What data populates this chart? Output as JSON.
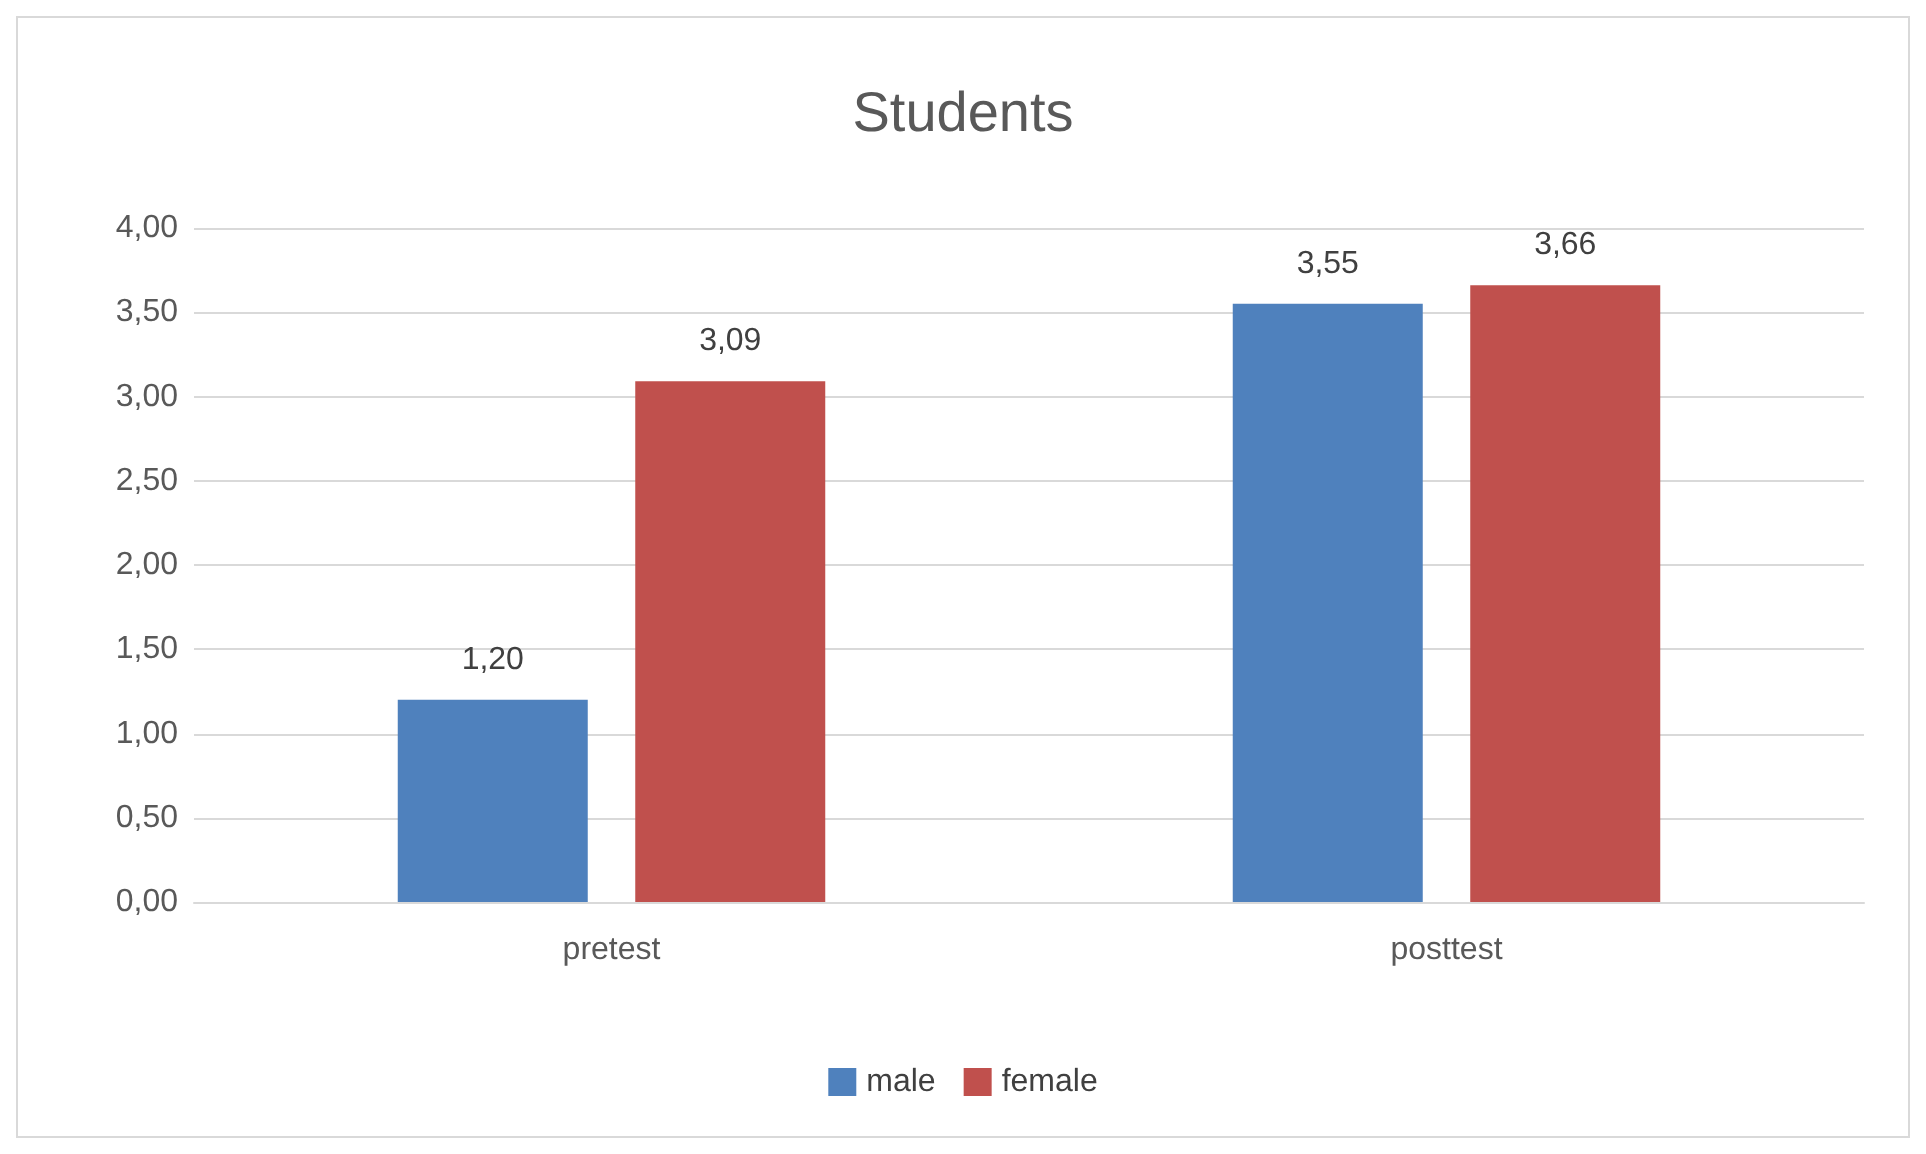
{
  "chart_data": {
    "type": "bar",
    "title": "Students",
    "categories": [
      "pretest",
      "posttest"
    ],
    "series": [
      {
        "name": "male",
        "color": "#4f81bd",
        "values": [
          1.2,
          3.55
        ],
        "value_labels": [
          "1,20",
          "3,55"
        ]
      },
      {
        "name": "female",
        "color": "#c0504d",
        "values": [
          3.09,
          3.66
        ],
        "value_labels": [
          "3,09",
          "3,66"
        ]
      }
    ],
    "ylim": [
      0,
      4
    ],
    "yticks": [
      {
        "value": 0,
        "label": "0,00"
      },
      {
        "value": 0.5,
        "label": "0,50"
      },
      {
        "value": 1,
        "label": "1,00"
      },
      {
        "value": 1.5,
        "label": "1,50"
      },
      {
        "value": 2,
        "label": "2,00"
      },
      {
        "value": 2.5,
        "label": "2,50"
      },
      {
        "value": 3,
        "label": "3,00"
      },
      {
        "value": 3.5,
        "label": "3,50"
      },
      {
        "value": 4,
        "label": "4,00"
      }
    ],
    "grid": "y",
    "legend": "bottom"
  }
}
